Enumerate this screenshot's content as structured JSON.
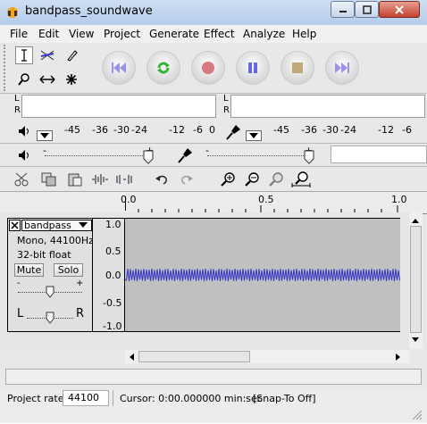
{
  "window": {
    "title": "bandpass_soundwave"
  },
  "menu": [
    "File",
    "Edit",
    "View",
    "Project",
    "Generate",
    "Effect",
    "Analyze",
    "Help"
  ],
  "meters": {
    "playback_labels": [
      "L",
      "R"
    ],
    "record_labels": [
      "L",
      "R"
    ],
    "scale_left": [
      "-45",
      "-36",
      "-30",
      "-24",
      "-12",
      "-6",
      "0"
    ],
    "scale_right": [
      "-45",
      "-36",
      "-30",
      "-24",
      "-12",
      "-6"
    ]
  },
  "mixer": {
    "minus": "-",
    "plus": "+"
  },
  "ruler": {
    "marks": [
      "0.0",
      "0.5",
      "1.0"
    ]
  },
  "track": {
    "name": "bandpass_",
    "format": "Mono, 44100Hz",
    "bitdepth": "32-bit float",
    "mute_label": "Mute",
    "solo_label": "Solo",
    "gain_minus": "-",
    "gain_plus": "+",
    "pan_left": "L",
    "pan_right": "R",
    "y_ticks": [
      "1.0",
      "0.5",
      "0.0",
      "-0.5",
      "-1.0"
    ]
  },
  "status": {
    "rate_label": "Project rate:",
    "rate_value": "44100",
    "cursor_text": "Cursor: 0:00.000000 min:sec",
    "snap_text": "[Snap-To Off]"
  },
  "colors": {
    "waveform": "#3232c8",
    "track_bg": "#c0c0c0",
    "titlebar": "#b9cfea"
  }
}
